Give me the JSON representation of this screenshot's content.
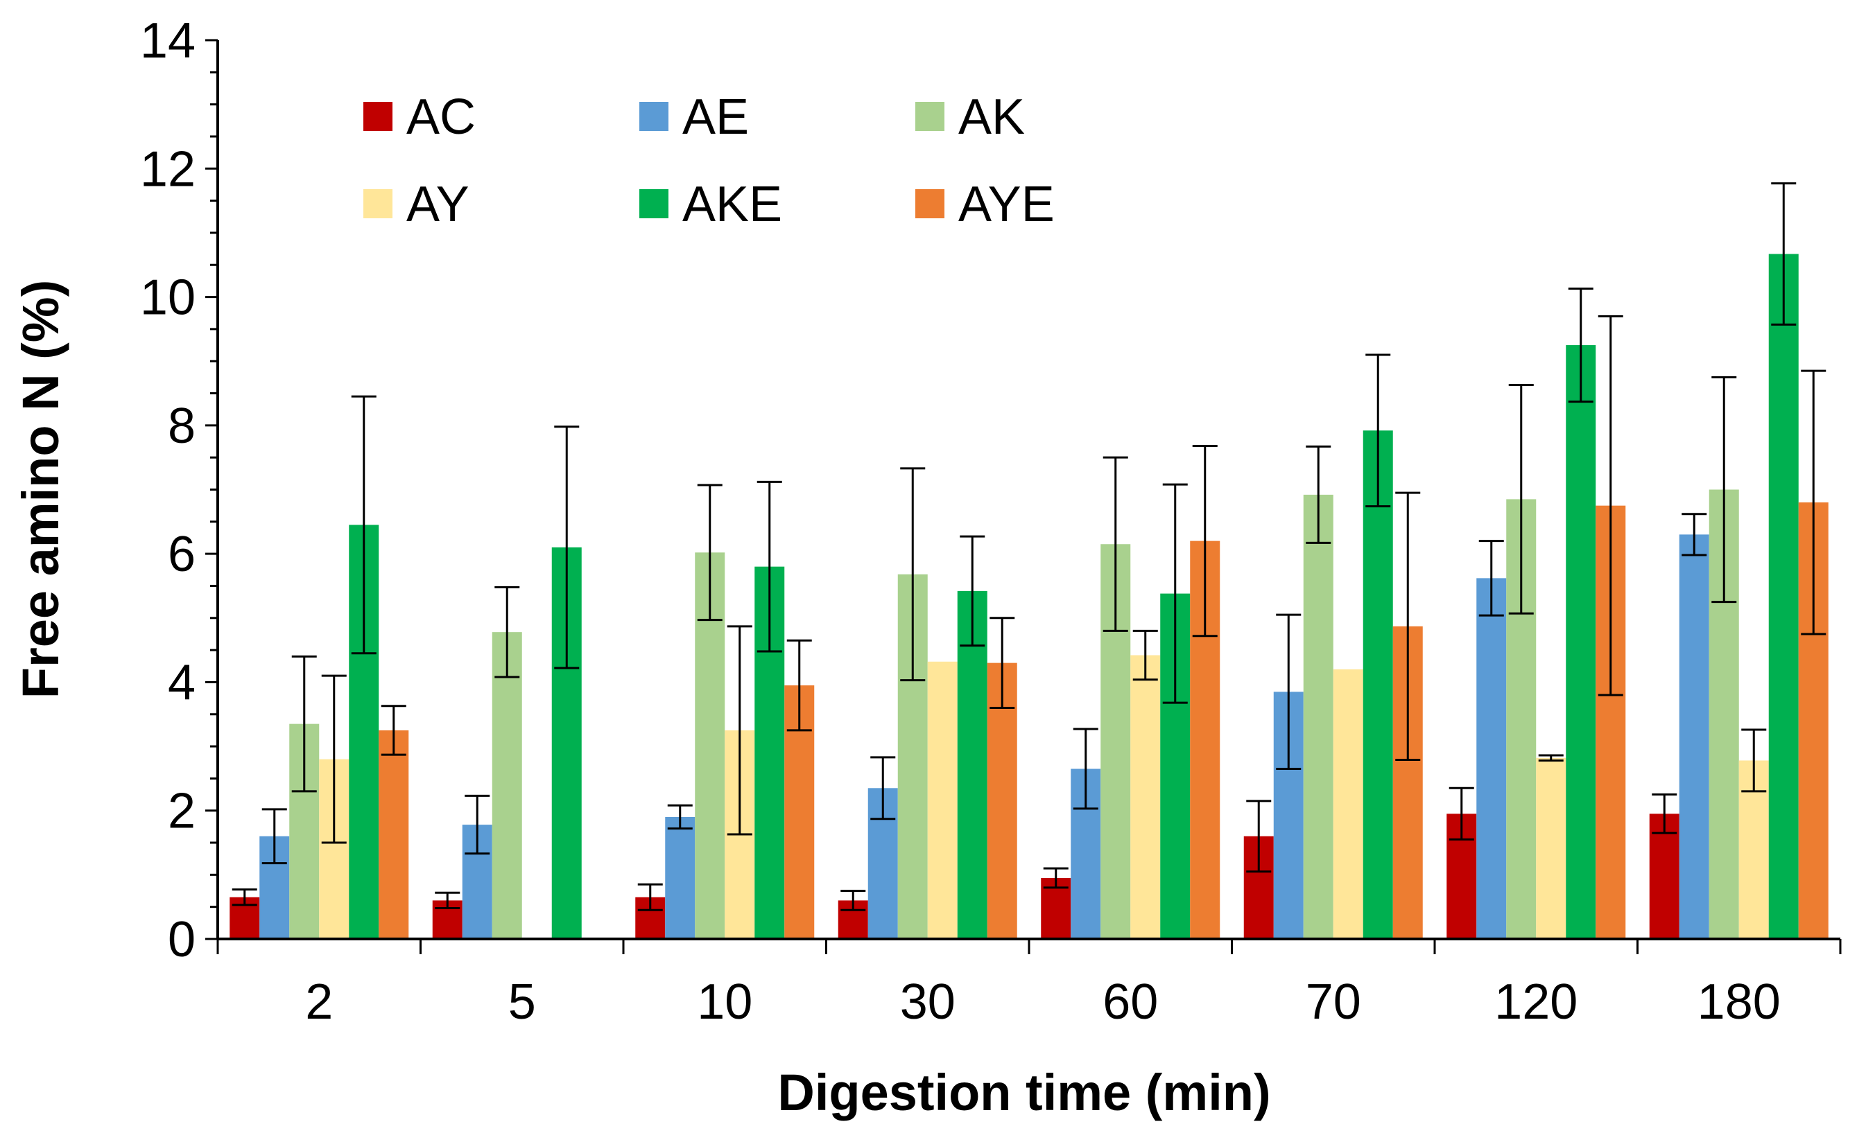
{
  "chart_data": {
    "type": "bar",
    "title": "",
    "xlabel": "Digestion time (min)",
    "ylabel": "Free amino N (%)",
    "ylim": [
      0,
      14
    ],
    "yticks": [
      "0",
      "2",
      "4",
      "6",
      "8",
      "10",
      "12",
      "14"
    ],
    "grid": false,
    "legend_position": "top-left",
    "categories": [
      "2",
      "5",
      "10",
      "30",
      "60",
      "70",
      "120",
      "180"
    ],
    "series": [
      {
        "name": "AC",
        "color": "#C00000",
        "values": [
          0.65,
          0.6,
          0.65,
          0.6,
          0.95,
          1.6,
          1.95,
          1.95
        ],
        "errors": [
          0.12,
          0.12,
          0.2,
          0.15,
          0.15,
          0.55,
          0.4,
          0.3
        ]
      },
      {
        "name": "AE",
        "color": "#5B9BD5",
        "values": [
          1.6,
          1.78,
          1.9,
          2.35,
          2.65,
          3.85,
          5.62,
          6.3
        ],
        "errors": [
          0.42,
          0.45,
          0.18,
          0.48,
          0.62,
          1.2,
          0.58,
          0.32
        ]
      },
      {
        "name": "AK",
        "color": "#A9D18E",
        "values": [
          3.35,
          4.78,
          6.02,
          5.68,
          6.15,
          6.92,
          6.85,
          7.0
        ],
        "errors": [
          1.05,
          0.7,
          1.05,
          1.65,
          1.35,
          0.75,
          1.78,
          1.75
        ]
      },
      {
        "name": "AY",
        "color": "#FFE699",
        "values": [
          2.8,
          0,
          3.25,
          4.32,
          4.42,
          4.2,
          2.82,
          2.78
        ],
        "errors": [
          1.3,
          0,
          1.62,
          0,
          0.38,
          0,
          0.04,
          0.48
        ]
      },
      {
        "name": "AKE",
        "color": "#00B050",
        "values": [
          6.45,
          6.1,
          5.8,
          5.42,
          5.38,
          7.92,
          9.25,
          10.67
        ],
        "errors": [
          2.0,
          1.88,
          1.32,
          0.85,
          1.7,
          1.18,
          0.88,
          1.1
        ]
      },
      {
        "name": "AYE",
        "color": "#ED7D31",
        "values": [
          3.25,
          0,
          3.95,
          4.3,
          6.2,
          4.87,
          6.75,
          6.8
        ],
        "errors": [
          0.38,
          0,
          0.7,
          0.7,
          1.48,
          2.08,
          2.95,
          2.05
        ]
      }
    ]
  }
}
